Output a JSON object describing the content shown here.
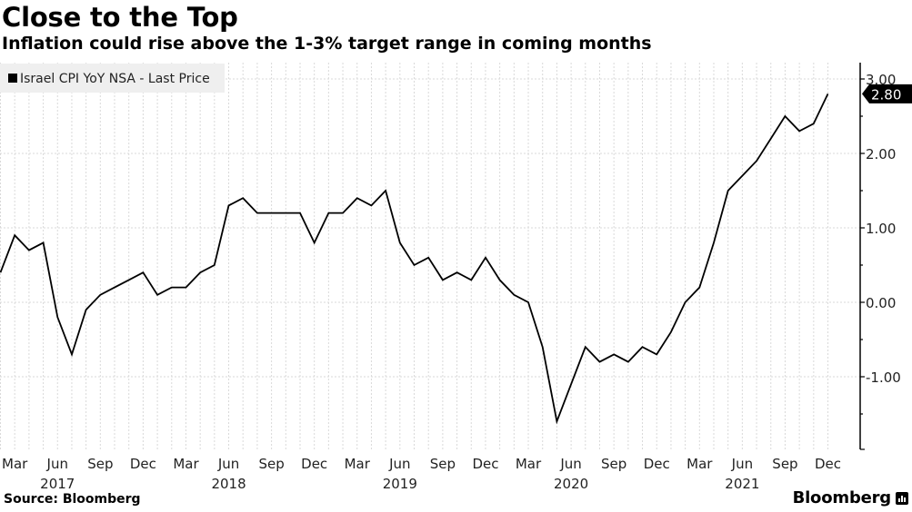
{
  "header": {
    "title": "Close to the Top",
    "subtitle": "Inflation could rise above the 1-3% target range in coming months"
  },
  "footer": {
    "source": "Source: Bloomberg",
    "brand": "Bloomberg",
    "brand_icon": "bloomberg-terminal-icon"
  },
  "chart_data": {
    "type": "line",
    "title": "Close to the Top",
    "subtitle": "Inflation could rise above the 1-3% target range in coming months",
    "xlabel": "",
    "ylabel": "",
    "legend": {
      "entries": [
        "Israel CPI YoY NSA - Last Price"
      ],
      "placement": "top-left"
    },
    "grid": true,
    "y_axis_side": "right",
    "ylim": [
      -2.0,
      3.2
    ],
    "yticks": [
      3.0,
      2.0,
      1.0,
      0.0,
      -1.0
    ],
    "ytick_labels": [
      "3.00",
      "2.00",
      "1.00",
      "0.00",
      "-1.00"
    ],
    "last_value_label": "2.80",
    "x_start": "2017-02",
    "x_end": "2021-12",
    "xtick_labels": [
      {
        "month": "Mar",
        "date": "2017-03"
      },
      {
        "month": "Jun",
        "date": "2017-06"
      },
      {
        "month": "Sep",
        "date": "2017-09"
      },
      {
        "month": "Dec",
        "date": "2017-12"
      },
      {
        "month": "Mar",
        "date": "2018-03"
      },
      {
        "month": "Jun",
        "date": "2018-06"
      },
      {
        "month": "Sep",
        "date": "2018-09"
      },
      {
        "month": "Dec",
        "date": "2018-12"
      },
      {
        "month": "Mar",
        "date": "2019-03"
      },
      {
        "month": "Jun",
        "date": "2019-06"
      },
      {
        "month": "Sep",
        "date": "2019-09"
      },
      {
        "month": "Dec",
        "date": "2019-12"
      },
      {
        "month": "Mar",
        "date": "2020-03"
      },
      {
        "month": "Jun",
        "date": "2020-06"
      },
      {
        "month": "Sep",
        "date": "2020-09"
      },
      {
        "month": "Dec",
        "date": "2020-12"
      },
      {
        "month": "Mar",
        "date": "2021-03"
      },
      {
        "month": "Jun",
        "date": "2021-06"
      },
      {
        "month": "Sep",
        "date": "2021-09"
      },
      {
        "month": "Dec",
        "date": "2021-12"
      }
    ],
    "year_labels": [
      {
        "year": "2017",
        "date": "2017-06"
      },
      {
        "year": "2018",
        "date": "2018-06"
      },
      {
        "year": "2019",
        "date": "2019-06"
      },
      {
        "year": "2020",
        "date": "2020-06"
      },
      {
        "year": "2021",
        "date": "2021-06"
      }
    ],
    "series": [
      {
        "name": "Israel CPI YoY NSA - Last Price",
        "color": "#000000",
        "x": [
          "2017-02",
          "2017-03",
          "2017-04",
          "2017-05",
          "2017-06",
          "2017-07",
          "2017-08",
          "2017-09",
          "2017-10",
          "2017-11",
          "2017-12",
          "2018-01",
          "2018-02",
          "2018-03",
          "2018-04",
          "2018-05",
          "2018-06",
          "2018-07",
          "2018-08",
          "2018-09",
          "2018-10",
          "2018-11",
          "2018-12",
          "2019-01",
          "2019-02",
          "2019-03",
          "2019-04",
          "2019-05",
          "2019-06",
          "2019-07",
          "2019-08",
          "2019-09",
          "2019-10",
          "2019-11",
          "2019-12",
          "2020-01",
          "2020-02",
          "2020-03",
          "2020-04",
          "2020-05",
          "2020-06",
          "2020-07",
          "2020-08",
          "2020-09",
          "2020-10",
          "2020-11",
          "2020-12",
          "2021-01",
          "2021-02",
          "2021-03",
          "2021-04",
          "2021-05",
          "2021-06",
          "2021-07",
          "2021-08",
          "2021-09",
          "2021-10",
          "2021-11",
          "2021-12"
        ],
        "values": [
          0.4,
          0.9,
          0.7,
          0.8,
          -0.2,
          -0.7,
          -0.1,
          0.1,
          0.2,
          0.3,
          0.4,
          0.1,
          0.2,
          0.2,
          0.4,
          0.5,
          1.3,
          1.4,
          1.2,
          1.2,
          1.2,
          1.2,
          0.8,
          1.2,
          1.2,
          1.4,
          1.3,
          1.5,
          0.8,
          0.5,
          0.6,
          0.3,
          0.4,
          0.3,
          0.6,
          0.3,
          0.1,
          0.0,
          -0.6,
          -1.6,
          -1.1,
          -0.6,
          -0.8,
          -0.7,
          -0.8,
          -0.6,
          -0.7,
          -0.4,
          0.0,
          0.2,
          0.8,
          1.5,
          1.7,
          1.9,
          2.2,
          2.5,
          2.3,
          2.4,
          2.8
        ]
      }
    ]
  }
}
